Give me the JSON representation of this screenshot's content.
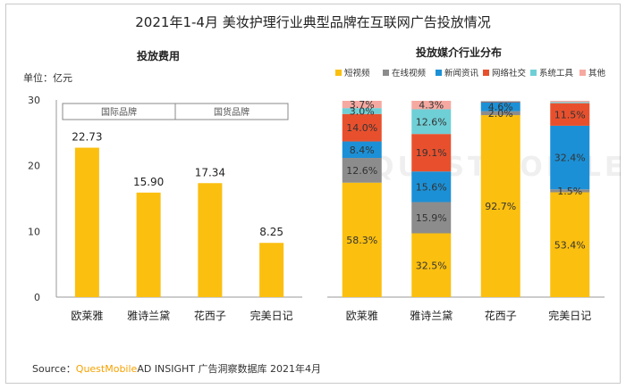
{
  "title": "2021年1-4月 美妆护理行业典型品牌在互联网广告投放情况",
  "source": {
    "prefix": "Source：",
    "brand": "QuestMobile",
    "rest": "AD INSIGHT 广告洞察数据库 2021年4月"
  },
  "watermark": "QUESTMOBILE",
  "colors": {
    "bar": "#fbbf0f",
    "short_video": "#fbbf0f",
    "online_video": "#8c8c8c",
    "news": "#1c90d6",
    "social": "#e8502d",
    "system_tools": "#6fcfd6",
    "other": "#f6a9a1"
  },
  "chart_data": [
    {
      "type": "bar",
      "title": "投放费用",
      "unit_label": "单位：亿元",
      "categories": [
        "欧莱雅",
        "雅诗兰黛",
        "花西子",
        "完美日记"
      ],
      "values": [
        22.73,
        15.9,
        17.34,
        8.25
      ],
      "value_labels": [
        "22.73",
        "15.90",
        "17.34",
        "8.25"
      ],
      "ylim": [
        0,
        30
      ],
      "yticks": [
        "0",
        "10",
        "20",
        "30"
      ],
      "legend_boxes": [
        "国际品牌",
        "国货品牌"
      ],
      "grid": false
    },
    {
      "type": "bar",
      "stacked": true,
      "title": "投放媒介行业分布",
      "categories": [
        "欧莱雅",
        "雅诗兰黛",
        "花西子",
        "完美日记"
      ],
      "series": [
        {
          "name": "短视频",
          "color_key": "short_video",
          "values": [
            58.3,
            32.5,
            92.7,
            53.4
          ],
          "labels": [
            "58.3%",
            "32.5%",
            "92.7%",
            "53.4%"
          ]
        },
        {
          "name": "在线视频",
          "color_key": "online_video",
          "values": [
            12.6,
            15.9,
            2.0,
            1.5
          ],
          "labels": [
            "12.6%",
            "15.9%",
            "2.0%",
            "1.5%"
          ]
        },
        {
          "name": "新闻资讯",
          "color_key": "news",
          "values": [
            8.4,
            15.6,
            4.6,
            32.4
          ],
          "labels": [
            "8.4%",
            "15.6%",
            "4.6%",
            "32.4%"
          ]
        },
        {
          "name": "网络社交",
          "color_key": "social",
          "values": [
            14.0,
            19.1,
            0.3,
            11.5
          ],
          "labels": [
            "14.0%",
            "19.1%",
            "",
            "11.5%"
          ]
        },
        {
          "name": "系统工具",
          "color_key": "system_tools",
          "values": [
            3.0,
            12.6,
            0.2,
            0.6
          ],
          "labels": [
            "3.0%",
            "12.6%",
            "",
            ""
          ]
        },
        {
          "name": "其他",
          "color_key": "other",
          "values": [
            3.7,
            4.3,
            0.2,
            0.6
          ],
          "labels": [
            "3.7%",
            "4.3%",
            "",
            ""
          ]
        }
      ],
      "legend_position": "top",
      "ylim": [
        0,
        100
      ]
    }
  ]
}
